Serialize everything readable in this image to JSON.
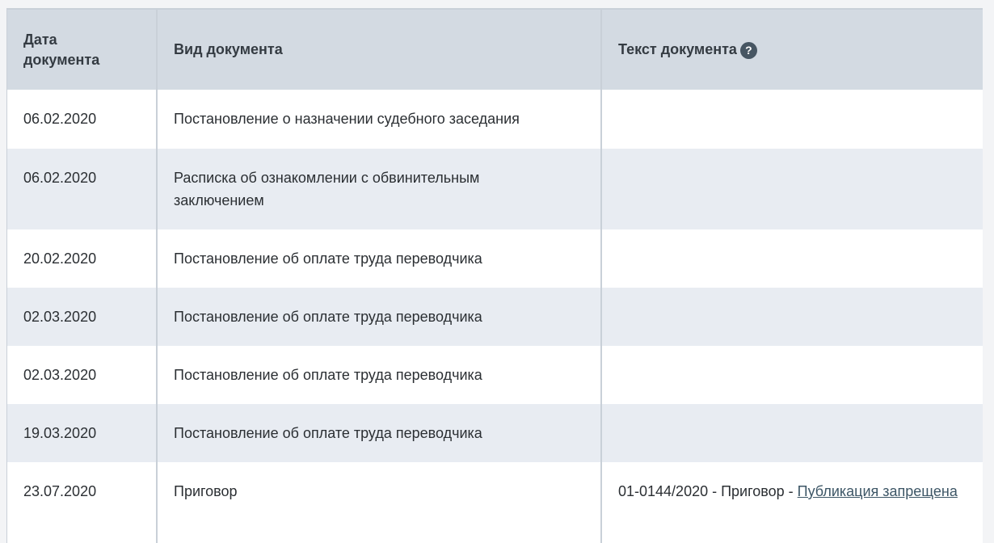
{
  "headers": {
    "date": "Дата документа",
    "type": "Вид документа",
    "text": "Текст документа",
    "help_icon": "?"
  },
  "rows": [
    {
      "date": "06.02.2020",
      "type": "Постановление о назначении судебного заседания",
      "text": ""
    },
    {
      "date": "06.02.2020",
      "type": "Расписка об ознакомлении с обвинительным заключением",
      "text": ""
    },
    {
      "date": "20.02.2020",
      "type": "Постановление об оплате труда переводчика",
      "text": ""
    },
    {
      "date": "02.03.2020",
      "type": "Постановление об оплате труда переводчика",
      "text": ""
    },
    {
      "date": "02.03.2020",
      "type": "Постановление об оплате труда переводчика",
      "text": ""
    },
    {
      "date": "19.03.2020",
      "type": "Постановление об оплате труда переводчика",
      "text": ""
    },
    {
      "date": "23.07.2020",
      "type": "Приговор",
      "text": "01-0144/2020 - Приговор - ",
      "link": "Публикация запрещена"
    }
  ]
}
